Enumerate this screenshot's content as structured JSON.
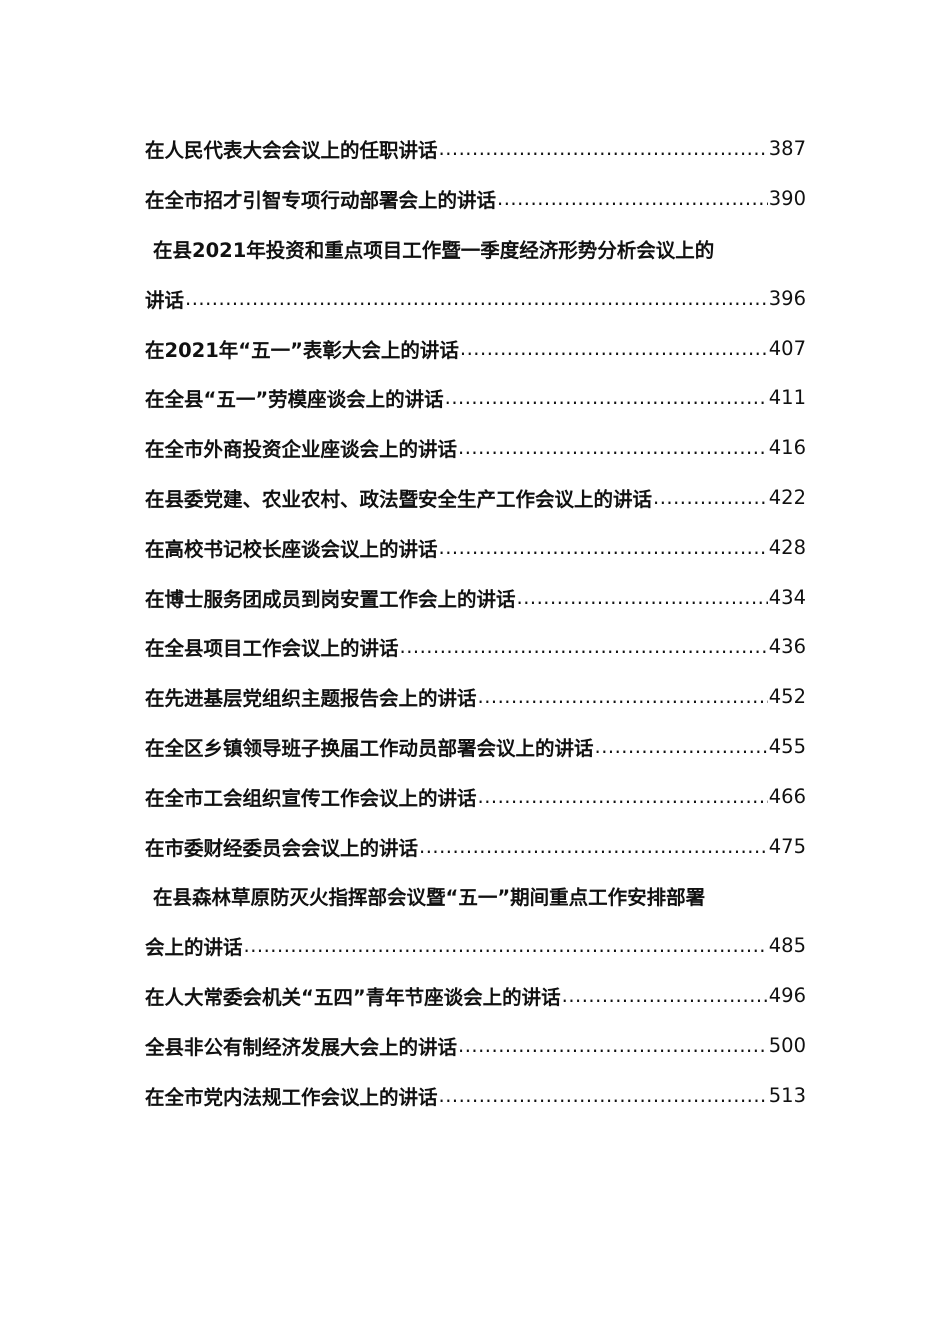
{
  "toc": {
    "entries": [
      {
        "lines": [
          "在人民代表大会会议上的任职讲话"
        ],
        "page": "387"
      },
      {
        "lines": [
          "在全市招才引智专项行动部署会上的讲话"
        ],
        "page": "390"
      },
      {
        "lines": [
          "在县2021年投资和重点项目工作暨一季度经济形势分析会议上的",
          "讲话"
        ],
        "page": "396"
      },
      {
        "lines": [
          "在2021年“五一”表彰大会上的讲话"
        ],
        "page": "407"
      },
      {
        "lines": [
          "在全县“五一”劳模座谈会上的讲话"
        ],
        "page": "411"
      },
      {
        "lines": [
          "在全市外商投资企业座谈会上的讲话"
        ],
        "page": "416"
      },
      {
        "lines": [
          "在县委党建、农业农村、政法暨安全生产工作会议上的讲话"
        ],
        "page": "422"
      },
      {
        "lines": [
          "在高校书记校长座谈会议上的讲话"
        ],
        "page": "428"
      },
      {
        "lines": [
          "在博士服务团成员到岗安置工作会上的讲话"
        ],
        "page": "434"
      },
      {
        "lines": [
          "在全县项目工作会议上的讲话"
        ],
        "page": "436"
      },
      {
        "lines": [
          "在先进基层党组织主题报告会上的讲话"
        ],
        "page": "452"
      },
      {
        "lines": [
          "在全区乡镇领导班子换届工作动员部署会议上的讲话"
        ],
        "page": "455"
      },
      {
        "lines": [
          "在全市工会组织宣传工作会议上的讲话"
        ],
        "page": "466"
      },
      {
        "lines": [
          "在市委财经委员会会议上的讲话"
        ],
        "page": "475"
      },
      {
        "lines": [
          "在县森林草原防灭火指挥部会议暨“五一”期间重点工作安排部署",
          "会上的讲话"
        ],
        "page": "485"
      },
      {
        "lines": [
          "在人大常委会机关“五四”青年节座谈会上的讲话"
        ],
        "page": "496"
      },
      {
        "lines": [
          "全县非公有制经济发展大会上的讲话"
        ],
        "page": "500"
      },
      {
        "lines": [
          "在全市党内法规工作会议上的讲话"
        ],
        "page": "513"
      }
    ]
  }
}
